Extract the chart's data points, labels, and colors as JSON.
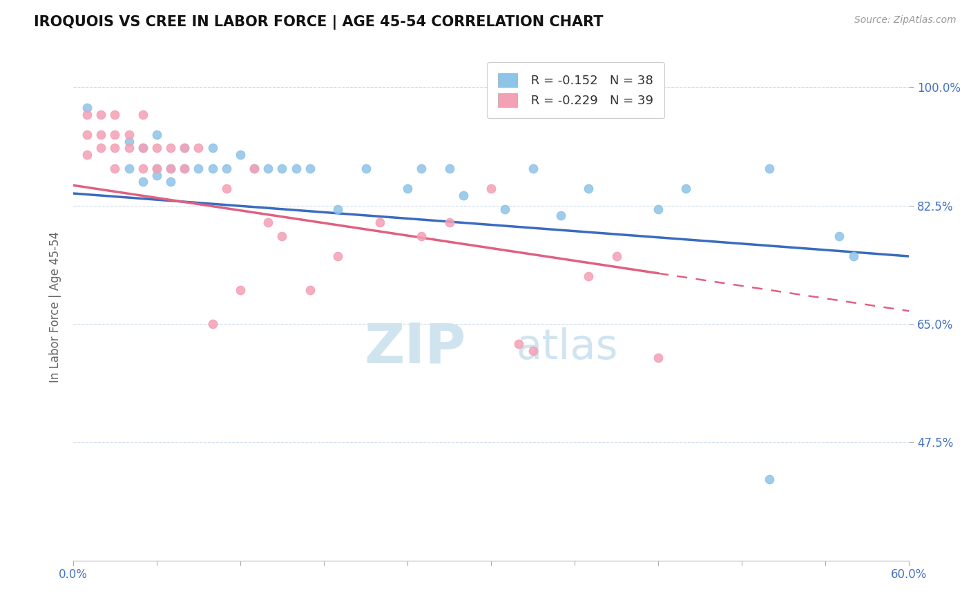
{
  "title": "IROQUOIS VS CREE IN LABOR FORCE | AGE 45-54 CORRELATION CHART",
  "source": "Source: ZipAtlas.com",
  "ylabel": "In Labor Force | Age 45-54",
  "xlim": [
    0.0,
    0.6
  ],
  "ylim": [
    0.3,
    1.05
  ],
  "xticks": [
    0.0,
    0.06,
    0.12,
    0.18,
    0.24,
    0.3,
    0.36,
    0.42,
    0.48,
    0.54,
    0.6
  ],
  "ytick_positions": [
    0.475,
    0.65,
    0.825,
    1.0
  ],
  "ytick_labels": [
    "47.5%",
    "65.0%",
    "82.5%",
    "100.0%"
  ],
  "iroquois_color": "#8ec4e8",
  "cree_color": "#f4a0b5",
  "iroquois_line_color": "#3a6bbf",
  "cree_line_color": "#e06080",
  "R_iroquois": -0.152,
  "N_iroquois": 38,
  "R_cree": -0.229,
  "N_cree": 39,
  "watermark_color": "#d0e4f0",
  "iroquois_intercept": 0.843,
  "iroquois_slope": -0.155,
  "cree_intercept": 0.855,
  "cree_slope": -0.31,
  "iroquois_x": [
    0.01,
    0.04,
    0.04,
    0.05,
    0.05,
    0.06,
    0.06,
    0.06,
    0.07,
    0.07,
    0.08,
    0.08,
    0.09,
    0.1,
    0.1,
    0.11,
    0.12,
    0.13,
    0.14,
    0.15,
    0.16,
    0.17,
    0.19,
    0.21,
    0.24,
    0.25,
    0.27,
    0.28,
    0.31,
    0.33,
    0.35,
    0.37,
    0.42,
    0.44,
    0.5,
    0.5,
    0.55,
    0.56
  ],
  "iroquois_y": [
    0.97,
    0.92,
    0.88,
    0.91,
    0.86,
    0.88,
    0.87,
    0.93,
    0.88,
    0.86,
    0.91,
    0.88,
    0.88,
    0.88,
    0.91,
    0.88,
    0.9,
    0.88,
    0.88,
    0.88,
    0.88,
    0.88,
    0.82,
    0.88,
    0.85,
    0.88,
    0.88,
    0.84,
    0.82,
    0.88,
    0.81,
    0.85,
    0.82,
    0.85,
    0.88,
    0.42,
    0.78,
    0.75
  ],
  "cree_x": [
    0.01,
    0.01,
    0.01,
    0.02,
    0.02,
    0.02,
    0.03,
    0.03,
    0.03,
    0.03,
    0.04,
    0.04,
    0.05,
    0.05,
    0.05,
    0.06,
    0.06,
    0.07,
    0.07,
    0.08,
    0.08,
    0.09,
    0.1,
    0.11,
    0.12,
    0.13,
    0.14,
    0.15,
    0.17,
    0.19,
    0.22,
    0.25,
    0.27,
    0.3,
    0.32,
    0.33,
    0.37,
    0.39,
    0.42
  ],
  "cree_y": [
    0.9,
    0.93,
    0.96,
    0.91,
    0.93,
    0.96,
    0.91,
    0.93,
    0.88,
    0.96,
    0.91,
    0.93,
    0.88,
    0.91,
    0.96,
    0.91,
    0.88,
    0.88,
    0.91,
    0.91,
    0.88,
    0.91,
    0.65,
    0.85,
    0.7,
    0.88,
    0.8,
    0.78,
    0.7,
    0.75,
    0.8,
    0.78,
    0.8,
    0.85,
    0.62,
    0.61,
    0.72,
    0.75,
    0.6
  ]
}
